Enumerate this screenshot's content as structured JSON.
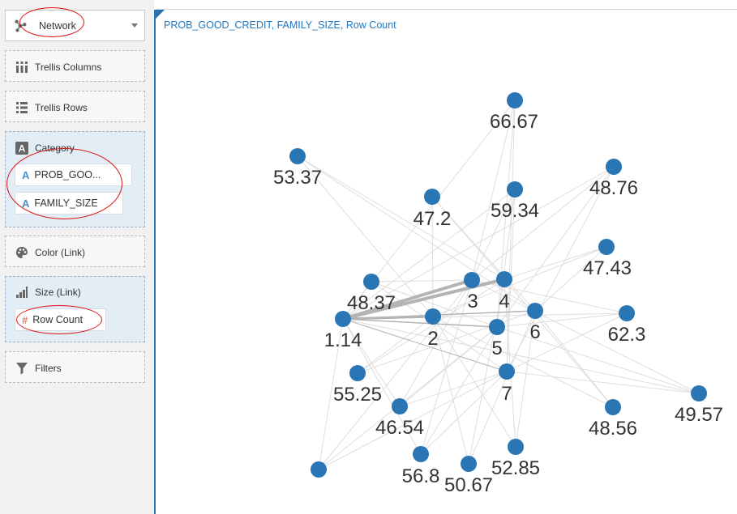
{
  "sidebar": {
    "viz_type": {
      "label": "Network"
    },
    "trellis_columns": {
      "label": "Trellis Columns"
    },
    "trellis_rows": {
      "label": "Trellis Rows"
    },
    "category": {
      "label": "Category",
      "items": [
        "PROB_GOO...",
        "FAMILY_SIZE"
      ]
    },
    "color_link": {
      "label": "Color (Link)"
    },
    "size_link": {
      "label": "Size (Link)",
      "items": [
        "Row Count"
      ]
    },
    "filters": {
      "label": "Filters"
    }
  },
  "chart": {
    "title": "PROB_GOOD_CREDIT, FAMILY_SIZE, Row Count"
  },
  "chart_data": {
    "type": "network",
    "node_color": "#2a76b5",
    "nodes": [
      "66.67",
      "53.37",
      "48.76",
      "47.2",
      "59.34",
      "47.43",
      "48.37",
      "3",
      "4",
      "1.14",
      "2",
      "6",
      "62.3",
      "5",
      "7",
      "55.25",
      "46.54",
      "48.56",
      "49.57",
      "52.85",
      "56.8",
      "50.67",
      ""
    ],
    "strong_links": [
      [
        "1.14",
        "3"
      ],
      [
        "1.14",
        "4"
      ],
      [
        "1.14",
        "2"
      ],
      [
        "1.14",
        "6"
      ],
      [
        "1.14",
        "5"
      ],
      [
        "1.14",
        "7"
      ]
    ]
  }
}
